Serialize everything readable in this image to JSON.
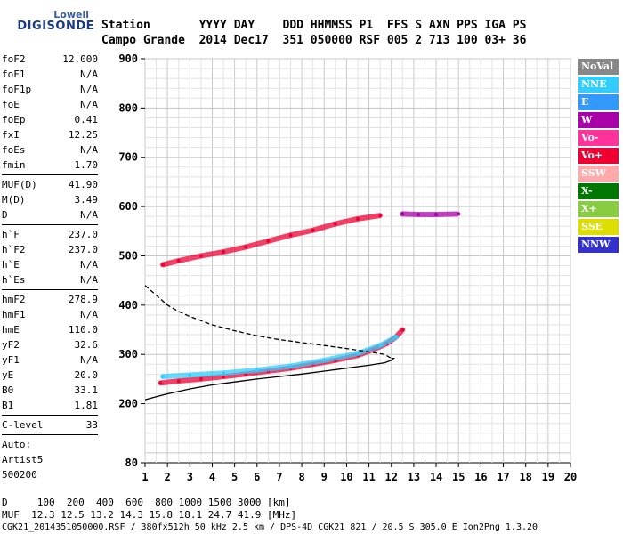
{
  "logo": {
    "line1": "Lowell",
    "line2": "DIGISONDE"
  },
  "header": {
    "row1": "Station       YYYY DAY    DDD HHMMSS P1  FFS S AXN PPS IGA PS",
    "row2": "Campo Grande  2014 Dec17  351 050000 RSF 005 2 713 100 03+ 36"
  },
  "params": [
    {
      "n": "foF2",
      "v": "12.000"
    },
    {
      "n": "foF1",
      "v": "N/A"
    },
    {
      "n": "foF1p",
      "v": "N/A"
    },
    {
      "n": "foE",
      "v": "N/A"
    },
    {
      "n": "foEp",
      "v": "0.41"
    },
    {
      "n": "fxI",
      "v": "12.25"
    },
    {
      "n": "foEs",
      "v": "N/A"
    },
    {
      "n": "fmin",
      "v": "1.70"
    },
    {
      "sep": true
    },
    {
      "n": "MUF(D)",
      "v": "41.90"
    },
    {
      "n": "M(D)",
      "v": "3.49"
    },
    {
      "n": "D",
      "v": "N/A"
    },
    {
      "sep": true
    },
    {
      "n": "h`F",
      "v": "237.0"
    },
    {
      "n": "h`F2",
      "v": "237.0"
    },
    {
      "n": "h`E",
      "v": "N/A"
    },
    {
      "n": "h`Es",
      "v": "N/A"
    },
    {
      "sep": true
    },
    {
      "n": "hmF2",
      "v": "278.9"
    },
    {
      "n": "hmF1",
      "v": "N/A"
    },
    {
      "n": "hmE",
      "v": "110.0"
    },
    {
      "n": "yF2",
      "v": "32.6"
    },
    {
      "n": "yF1",
      "v": "N/A"
    },
    {
      "n": "yE",
      "v": "20.0"
    },
    {
      "n": "B0",
      "v": "33.1"
    },
    {
      "n": "B1",
      "v": "1.81"
    },
    {
      "sep": true
    },
    {
      "n": "C-level",
      "v": "33"
    },
    {
      "sep": true
    },
    {
      "n": "Auto:",
      "v": ""
    },
    {
      "n": "Artist5",
      "v": ""
    },
    {
      "n": "500200",
      "v": ""
    }
  ],
  "legend": [
    {
      "label": "NoVal",
      "color": "#888888"
    },
    {
      "label": "NNE",
      "color": "#33ccff"
    },
    {
      "label": "E",
      "color": "#3399ff"
    },
    {
      "label": "W",
      "color": "#aa00aa"
    },
    {
      "label": "Vo-",
      "color": "#ff3399"
    },
    {
      "label": "Vo+",
      "color": "#ee0033"
    },
    {
      "label": "SSW",
      "color": "#ffaaaa"
    },
    {
      "label": "X-",
      "color": "#007700"
    },
    {
      "label": "X+",
      "color": "#88cc44"
    },
    {
      "label": "SSE",
      "color": "#dddd00"
    },
    {
      "label": "NNW",
      "color": "#3333cc"
    }
  ],
  "chart_data": {
    "type": "scatter",
    "title": "",
    "xlabel": "",
    "ylabel": "",
    "xlim": [
      1,
      20
    ],
    "ylim": [
      80,
      900
    ],
    "x_ticks": [
      1,
      2,
      3,
      4,
      5,
      6,
      7,
      8,
      9,
      10,
      11,
      12,
      13,
      14,
      15,
      16,
      17,
      18,
      19,
      20
    ],
    "y_ticks": [
      80,
      200,
      300,
      400,
      500,
      600,
      700,
      800,
      900
    ],
    "grid": true,
    "series": [
      {
        "style": "trace",
        "color": "#ee0033",
        "x": [
          1.7,
          2.5,
          3.5,
          4.5,
          5.5,
          6.5,
          7.5,
          8.5,
          9.5,
          10.5,
          11.2,
          11.8,
          12.2,
          12.5
        ],
        "y": [
          242,
          246,
          250,
          255,
          260,
          266,
          272,
          280,
          288,
          298,
          310,
          322,
          335,
          350
        ]
      },
      {
        "style": "trace",
        "color": "#33ccff",
        "x": [
          1.8,
          3,
          4.5,
          6,
          7.5,
          9,
          10.5,
          11.5,
          12.2
        ],
        "y": [
          255,
          258,
          262,
          268,
          276,
          288,
          302,
          318,
          335
        ]
      },
      {
        "style": "trace",
        "color": "#ee0033",
        "x": [
          1.8,
          2.5,
          3.5,
          4.5,
          5.5,
          6.5,
          7.5,
          8.5,
          9.5,
          10.5,
          11.5
        ],
        "y": [
          482,
          490,
          500,
          508,
          518,
          530,
          542,
          552,
          565,
          575,
          582
        ]
      },
      {
        "style": "trace",
        "color": "#aa00aa",
        "x": [
          12.5,
          13.2,
          14,
          15
        ],
        "y": [
          585,
          584,
          584,
          585
        ]
      },
      {
        "style": "line-solid",
        "color": "#000000",
        "x": [
          1,
          1.5,
          2,
          3,
          4,
          5,
          6,
          7,
          8,
          9,
          10,
          11,
          11.7,
          12,
          12.1,
          12
        ],
        "y": [
          208,
          214,
          220,
          230,
          238,
          244,
          250,
          255,
          260,
          266,
          272,
          278,
          283,
          288,
          292,
          292
        ]
      },
      {
        "style": "line-dashed",
        "color": "#000000",
        "x": [
          1,
          1.5,
          2,
          2.5,
          3,
          4,
          5,
          6,
          7,
          8,
          9,
          10,
          11,
          11.7,
          12
        ],
        "y": [
          440,
          420,
          400,
          387,
          377,
          360,
          348,
          338,
          330,
          324,
          318,
          312,
          305,
          300,
          292
        ]
      }
    ]
  },
  "footer": {
    "d_row": "D     100  200  400  600  800 1000 1500 3000 [km]",
    "muf_row": "MUF  12.3 12.5 13.2 14.3 15.8 18.1 24.7 41.9 [MHz]",
    "meta": "CGK21_2014351050000.RSF / 380fx512h 50 kHz 2.5 km / DPS-4D CGK21 821 / 20.5 S 305.0 E Ion2Png 1.3.20"
  }
}
